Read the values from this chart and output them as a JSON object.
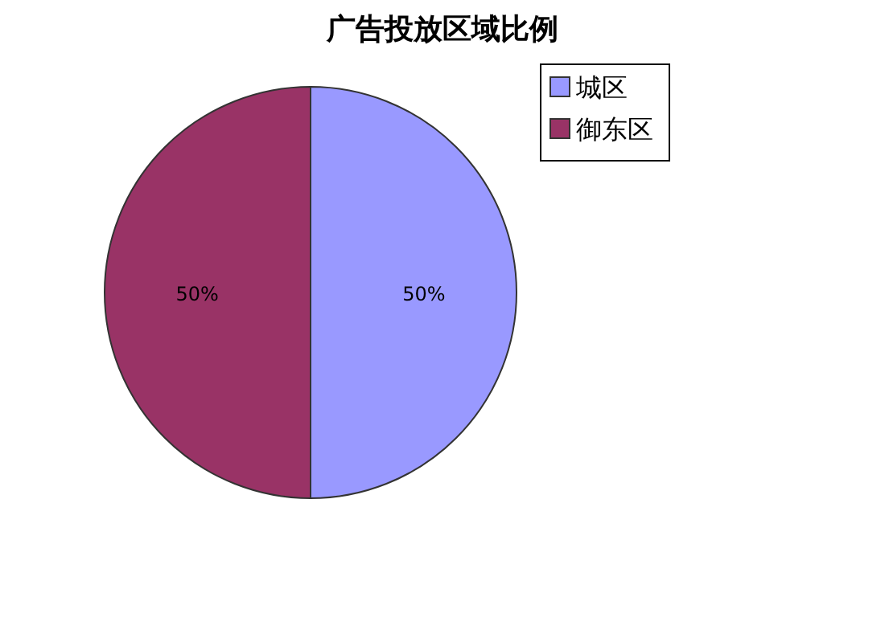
{
  "chart_data": {
    "type": "pie",
    "title": "广告投放区域比例",
    "categories": [
      "城区",
      "御东区"
    ],
    "values": [
      50,
      50
    ],
    "colors": [
      "#9999ff",
      "#993366"
    ],
    "value_labels": [
      "50%",
      "50%"
    ],
    "legend": "top right"
  }
}
